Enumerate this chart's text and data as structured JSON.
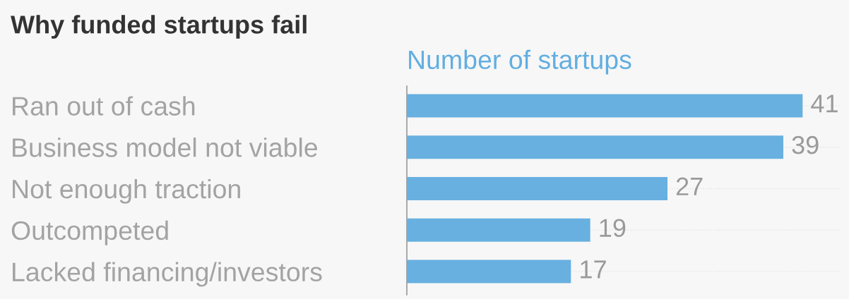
{
  "chart_data": {
    "type": "bar",
    "orientation": "horizontal",
    "title": "Why funded startups fail",
    "xlabel": "Number of startups",
    "categories": [
      "Ran out of cash",
      "Business model not viable",
      "Not enough traction",
      "Outcompeted",
      "Lacked financing/investors"
    ],
    "values": [
      41,
      39,
      27,
      19,
      17
    ],
    "color": "#68b0e0",
    "xlim": [
      0,
      45
    ],
    "data_labels": true,
    "tick_labels": "y",
    "grid": "y"
  }
}
